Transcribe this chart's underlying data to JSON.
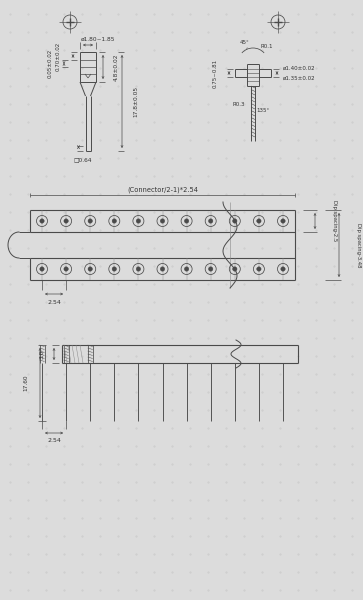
{
  "bg_color": "#dcdcdc",
  "line_color": "#4a4a4a",
  "text_color": "#333333",
  "annotations_top_left": {
    "phi": "ø1.80~1.85",
    "dim1": "4.8±0.02",
    "dim2": "17.8±0.05",
    "dim3": "0.70±0.02",
    "dim4": "0.05±0.02",
    "dim5": "□0.64"
  },
  "annotations_top_right": {
    "angle": "45°",
    "r1": "R0.1",
    "phi1": "ø1.40±0.02",
    "phi2": "ø1.35±0.02",
    "dim1": "0.75~0.81",
    "r2": "R0.3",
    "angle2": "135°"
  },
  "annotations_mid": {
    "connector": "(Connector/2-1)*2.54",
    "spacing1": "2.54",
    "dip_spacing_25": "Dip spacing-2.5",
    "dip_spacing_348": "Dip spacing-3.48"
  },
  "annotations_bot": {
    "dim1": "3.0",
    "dim2": "17.60",
    "spacing": "2.54"
  },
  "grid_color": "#c8c8c8"
}
